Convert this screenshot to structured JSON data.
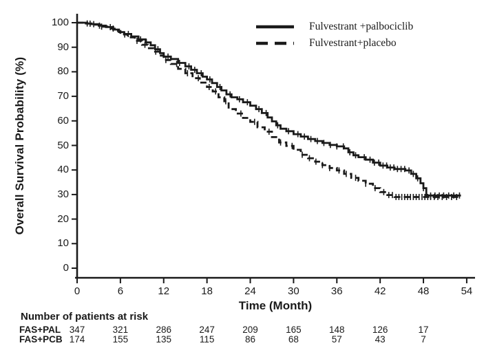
{
  "figure": {
    "background": "#ffffff",
    "ink": "#1a1a1a"
  },
  "chart_data": {
    "type": "line",
    "subtype": "kaplan-meier-step",
    "title": "",
    "xlabel": "Time (Month)",
    "ylabel": "Overall Survival Probability (%)",
    "xlim": [
      0,
      54
    ],
    "ylim": [
      0,
      100
    ],
    "x_ticks": [
      0,
      6,
      12,
      18,
      24,
      30,
      36,
      42,
      48,
      54
    ],
    "y_ticks": [
      0,
      10,
      20,
      30,
      40,
      50,
      60,
      70,
      80,
      90,
      100
    ],
    "grid": false,
    "legend_position": "top-right",
    "series": [
      {
        "name": "Fulvestrant +palbociclib",
        "style": "solid",
        "points": [
          [
            0,
            100
          ],
          [
            1.2,
            99.7
          ],
          [
            2,
            99.4
          ],
          [
            3,
            98.8
          ],
          [
            4,
            98.2
          ],
          [
            5,
            97.2
          ],
          [
            5.8,
            96.2
          ],
          [
            6.5,
            95.4
          ],
          [
            7.5,
            94.4
          ],
          [
            8.5,
            93.2
          ],
          [
            9.5,
            92.0
          ],
          [
            10.2,
            90.8
          ],
          [
            10.8,
            89.2
          ],
          [
            11.5,
            87.6
          ],
          [
            12,
            86.2
          ],
          [
            13,
            85.2
          ],
          [
            14,
            83.6
          ],
          [
            15,
            82.2
          ],
          [
            15.8,
            80.8
          ],
          [
            16.6,
            79.4
          ],
          [
            17.4,
            78.0
          ],
          [
            18,
            76.9
          ],
          [
            18.7,
            75.4
          ],
          [
            19.4,
            73.8
          ],
          [
            20,
            72.4
          ],
          [
            20.7,
            70.8
          ],
          [
            21.4,
            69.6
          ],
          [
            22.2,
            68.8
          ],
          [
            23,
            67.6
          ],
          [
            24,
            66.2
          ],
          [
            24.8,
            64.8
          ],
          [
            25.6,
            63.2
          ],
          [
            26.4,
            61.4
          ],
          [
            27,
            59.8
          ],
          [
            27.6,
            58.2
          ],
          [
            28.2,
            56.8
          ],
          [
            29,
            55.8
          ],
          [
            30,
            54.6
          ],
          [
            31,
            53.6
          ],
          [
            32,
            52.6
          ],
          [
            33,
            51.8
          ],
          [
            34,
            51.0
          ],
          [
            35,
            50.2
          ],
          [
            36,
            49.6
          ],
          [
            37,
            48.8
          ],
          [
            37.6,
            47.2
          ],
          [
            38.3,
            46.0
          ],
          [
            39,
            45.2
          ],
          [
            40,
            44.2
          ],
          [
            41,
            43.0
          ],
          [
            42,
            41.8
          ],
          [
            43,
            41.0
          ],
          [
            44,
            40.4
          ],
          [
            45.5,
            39.8
          ],
          [
            46.3,
            38.4
          ],
          [
            47,
            36.6
          ],
          [
            47.6,
            34.6
          ],
          [
            48,
            32.6
          ],
          [
            48.4,
            29.6
          ],
          [
            53.2,
            29.6
          ]
        ],
        "censor_months": [
          1.4,
          2.3,
          3.1,
          4.6,
          7.1,
          8.8,
          9.6,
          11.2,
          12.6,
          14.2,
          15.5,
          16.3,
          17.2,
          18.4,
          19.8,
          21.2,
          22.5,
          23.6,
          25.2,
          26.2,
          27.8,
          29.3,
          30.6,
          31.5,
          32.4,
          33.3,
          34.2,
          35.1,
          36.0,
          36.9,
          37.8,
          38.6,
          39.8,
          40.6,
          41.2,
          41.8,
          42.4,
          42.9,
          43.4,
          43.9,
          44.4,
          44.9,
          45.4,
          46.0,
          46.6,
          47.2,
          48.0,
          49.0,
          49.6,
          50.2,
          50.8,
          51.5,
          52.2,
          53.0
        ]
      },
      {
        "name": "Fulvestrant+placebo",
        "style": "dashed",
        "points": [
          [
            0,
            100
          ],
          [
            1.4,
            99.6
          ],
          [
            2.2,
            99.2
          ],
          [
            3.2,
            98.4
          ],
          [
            4.2,
            97.6
          ],
          [
            5.2,
            96.6
          ],
          [
            6,
            95.2
          ],
          [
            7,
            94.0
          ],
          [
            8,
            92.6
          ],
          [
            9,
            91.0
          ],
          [
            9.8,
            89.6
          ],
          [
            10.6,
            88.2
          ],
          [
            11.4,
            86.6
          ],
          [
            12,
            84.8
          ],
          [
            13,
            83.2
          ],
          [
            14,
            81.2
          ],
          [
            15,
            79.4
          ],
          [
            16,
            77.4
          ],
          [
            17,
            75.6
          ],
          [
            18,
            73.8
          ],
          [
            18.8,
            72.0
          ],
          [
            19.6,
            69.6
          ],
          [
            20.4,
            68.0
          ],
          [
            21,
            64.8
          ],
          [
            22,
            63.0
          ],
          [
            23,
            61.2
          ],
          [
            24,
            59.6
          ],
          [
            25,
            57.4
          ],
          [
            26,
            55.6
          ],
          [
            27,
            53.4
          ],
          [
            28,
            51.2
          ],
          [
            29,
            49.8
          ],
          [
            30,
            48.2
          ],
          [
            31,
            46.2
          ],
          [
            32,
            44.8
          ],
          [
            33,
            43.4
          ],
          [
            34,
            42.0
          ],
          [
            35,
            40.8
          ],
          [
            36,
            39.8
          ],
          [
            37,
            38.4
          ],
          [
            38,
            36.8
          ],
          [
            39,
            35.6
          ],
          [
            40,
            34.4
          ],
          [
            41,
            32.6
          ],
          [
            42,
            31.0
          ],
          [
            43,
            29.8
          ],
          [
            44,
            29.0
          ],
          [
            53.2,
            29.0
          ]
        ],
        "censor_months": [
          1.8,
          3.4,
          5.0,
          6.6,
          8.3,
          9.4,
          10.9,
          12.3,
          13.8,
          15.3,
          16.8,
          18.3,
          19.2,
          20.6,
          22.7,
          24.6,
          26.6,
          28.2,
          29.8,
          31.2,
          32.2,
          33.1,
          34.0,
          35.0,
          36.3,
          37.3,
          38.6,
          40.0,
          41.3,
          42.5,
          43.2,
          43.7,
          44.2,
          44.6,
          45.0,
          45.4,
          45.8,
          46.2,
          46.6,
          47.0,
          47.4,
          47.8,
          48.2,
          48.6,
          49.0,
          49.5,
          50.0,
          50.6,
          51.2,
          51.9,
          52.6
        ]
      }
    ]
  },
  "at_risk": {
    "header": "Number of patients at risk",
    "time_points": [
      0,
      6,
      12,
      18,
      24,
      30,
      36,
      42,
      48
    ],
    "rows": [
      {
        "label": "FAS+PAL",
        "counts": [
          347,
          321,
          286,
          247,
          209,
          165,
          148,
          126,
          17
        ]
      },
      {
        "label": "FAS+PCB",
        "counts": [
          174,
          155,
          135,
          115,
          86,
          68,
          57,
          43,
          7
        ]
      }
    ]
  }
}
